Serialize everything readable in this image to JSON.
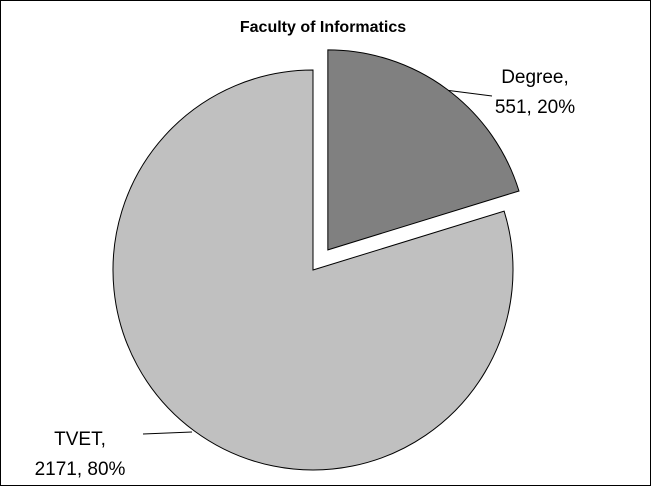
{
  "chart_data": {
    "type": "pie",
    "title": "Faculty of Informatics",
    "categories": [
      "Degree,",
      "TVET,"
    ],
    "values": [
      551,
      2171
    ],
    "value_labels": [
      "551, 20%",
      "2171, 80%"
    ],
    "colors": [
      "#808080",
      "#c0c0c0"
    ],
    "exploded": [
      true,
      false
    ]
  }
}
